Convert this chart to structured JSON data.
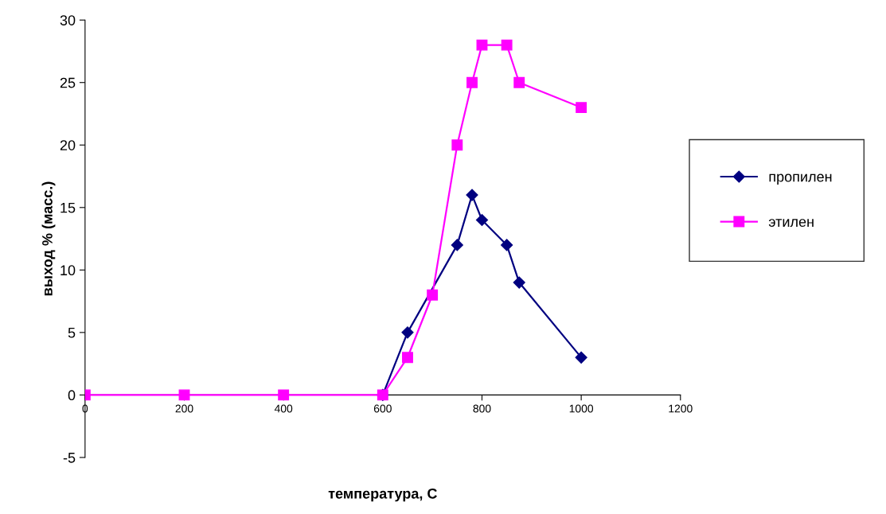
{
  "chart_data": {
    "type": "line",
    "xlabel": "температура, С",
    "ylabel": "выход % (масс.)",
    "xlim": [
      0,
      1200
    ],
    "xticks": [
      0,
      200,
      400,
      600,
      800,
      1000,
      1200
    ],
    "ylim": [
      -5,
      30
    ],
    "yticks": [
      -5,
      0,
      5,
      10,
      15,
      20,
      25,
      30
    ],
    "grid": false,
    "legend": "right",
    "series": [
      {
        "name": "пропилен",
        "color": "#000080",
        "marker": "diamond",
        "x": [
          600,
          650,
          750,
          780,
          800,
          850,
          875,
          1000
        ],
        "values": [
          0,
          5,
          12,
          16,
          14,
          12,
          9,
          3
        ]
      },
      {
        "name": "этилен",
        "color": "#ff00ff",
        "marker": "square",
        "x": [
          0,
          200,
          400,
          600,
          650,
          700,
          750,
          780,
          800,
          850,
          875,
          1000
        ],
        "values": [
          0,
          0,
          0,
          0,
          3,
          8,
          20,
          25,
          28,
          28,
          25,
          23
        ]
      }
    ]
  }
}
